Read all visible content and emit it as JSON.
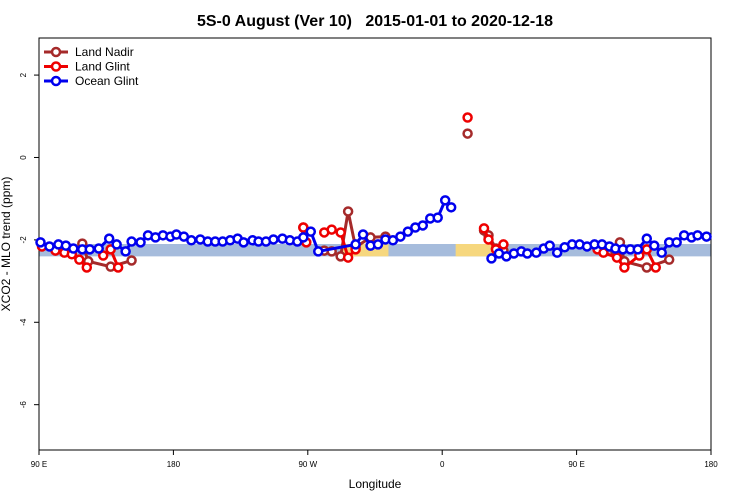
{
  "chart_data": {
    "type": "line",
    "title": "5S-0 August (Ver 10)   2015-01-01 to 2020-12-18",
    "x_label": "Longitude",
    "y_label": "XCO2 - MLO trend (ppm)",
    "xlim": [
      -270,
      180
    ],
    "xticks": [
      {
        "value": -270,
        "label": "90 E"
      },
      {
        "value": -180,
        "label": "180"
      },
      {
        "value": -90,
        "label": "90 W"
      },
      0,
      {
        "value": 90,
        "label": "90 E"
      },
      180
    ],
    "ylim": [
      -7.1,
      2.9
    ],
    "yticks": [
      2,
      0,
      -2,
      -4,
      -6
    ],
    "legend": "top-left",
    "band": {
      "ymin": -2.4,
      "ymax": -2.1,
      "color": "#a6bcdc"
    },
    "regions": [
      {
        "xmin": -68,
        "xmax": -36,
        "color": "#f6d77e"
      },
      {
        "xmin": 9,
        "xmax": 35,
        "color": "#f6d77e"
      }
    ],
    "series": [
      {
        "name": "Land Nadir",
        "color": "#a52a2a",
        "x": [
          -241,
          -237,
          -222,
          -208,
          null,
          -93,
          null,
          -79,
          -74,
          -68,
          -63,
          -58,
          -48,
          -38,
          null,
          17,
          null,
          28,
          31,
          36,
          41,
          null,
          116,
          119,
          122,
          137,
          152
        ],
        "values": [
          -2.09,
          -2.52,
          -2.65,
          -2.5,
          null,
          -1.7,
          null,
          -2.26,
          -2.28,
          -2.4,
          -1.31,
          -2.18,
          -1.94,
          -1.92,
          null,
          0.58,
          null,
          -1.77,
          -1.89,
          -2.21,
          -2.26,
          null,
          -2.28,
          -2.06,
          -2.52,
          -2.67,
          -2.48
        ]
      },
      {
        "name": "Land Glint",
        "color": "#ee0000",
        "x": [
          -268,
          -259,
          -253,
          -248,
          -243,
          -238,
          null,
          -227,
          -222,
          -217,
          null,
          -93,
          -91,
          null,
          -79,
          -74,
          -68,
          -63,
          -58,
          null,
          17,
          null,
          28,
          31,
          36,
          41,
          null,
          104,
          108,
          117,
          122,
          132,
          137,
          143
        ],
        "values": [
          -2.16,
          -2.26,
          -2.31,
          -2.35,
          -2.48,
          -2.67,
          null,
          -2.38,
          -2.23,
          -2.67,
          null,
          -1.7,
          -2.06,
          null,
          -1.82,
          -1.75,
          -1.82,
          -2.43,
          -2.23,
          null,
          0.97,
          null,
          -1.72,
          -1.99,
          -2.23,
          -2.11,
          null,
          -2.23,
          -2.31,
          -2.43,
          -2.67,
          -2.38,
          -2.23,
          -2.67
        ]
      },
      {
        "name": "Ocean Glint",
        "color": "#0000ee",
        "x": [
          -269,
          -263,
          -257,
          -252,
          -247,
          -241,
          -236,
          -230,
          -223,
          -218,
          -212,
          -208,
          -202,
          -197,
          -192,
          -187,
          -182,
          -178,
          -173,
          -168,
          -162,
          -157,
          -152,
          -147,
          -142,
          -137,
          -133,
          -127,
          -123,
          -118,
          -113,
          -107,
          -102,
          -97,
          -93,
          -88,
          -83,
          -58,
          -53,
          -48,
          -43,
          -38,
          -33,
          -28,
          -23,
          -18,
          -13,
          -8,
          -3,
          2,
          6,
          null,
          33,
          38,
          43,
          48,
          53,
          57,
          63,
          68,
          72,
          77,
          82,
          87,
          92,
          97,
          102,
          107,
          112,
          116,
          121,
          126,
          131,
          137,
          142,
          147,
          152,
          157,
          162,
          167,
          171,
          177
        ],
        "values": [
          -2.06,
          -2.16,
          -2.11,
          -2.14,
          -2.21,
          -2.23,
          -2.23,
          -2.21,
          -1.97,
          -2.11,
          -2.28,
          -2.04,
          -2.06,
          -1.89,
          -1.94,
          -1.89,
          -1.92,
          -1.87,
          -1.92,
          -2.01,
          -1.99,
          -2.04,
          -2.04,
          -2.04,
          -2.01,
          -1.97,
          -2.06,
          -2.01,
          -2.04,
          -2.04,
          -1.99,
          -1.97,
          -2.01,
          -2.04,
          -1.94,
          -1.8,
          -2.28,
          -2.11,
          -1.87,
          -2.14,
          -2.11,
          -1.99,
          -2.01,
          -1.92,
          -1.8,
          -1.7,
          -1.65,
          -1.48,
          -1.46,
          -1.04,
          -1.21,
          null,
          -2.45,
          -2.33,
          -2.4,
          -2.33,
          -2.28,
          -2.33,
          -2.31,
          -2.21,
          -2.14,
          -2.31,
          -2.18,
          -2.11,
          -2.11,
          -2.16,
          -2.11,
          -2.11,
          -2.16,
          -2.21,
          -2.23,
          -2.23,
          -2.23,
          -1.97,
          -2.14,
          -2.31,
          -2.06,
          -2.06,
          -1.89,
          -1.94,
          -1.89,
          -1.92
        ]
      }
    ]
  }
}
